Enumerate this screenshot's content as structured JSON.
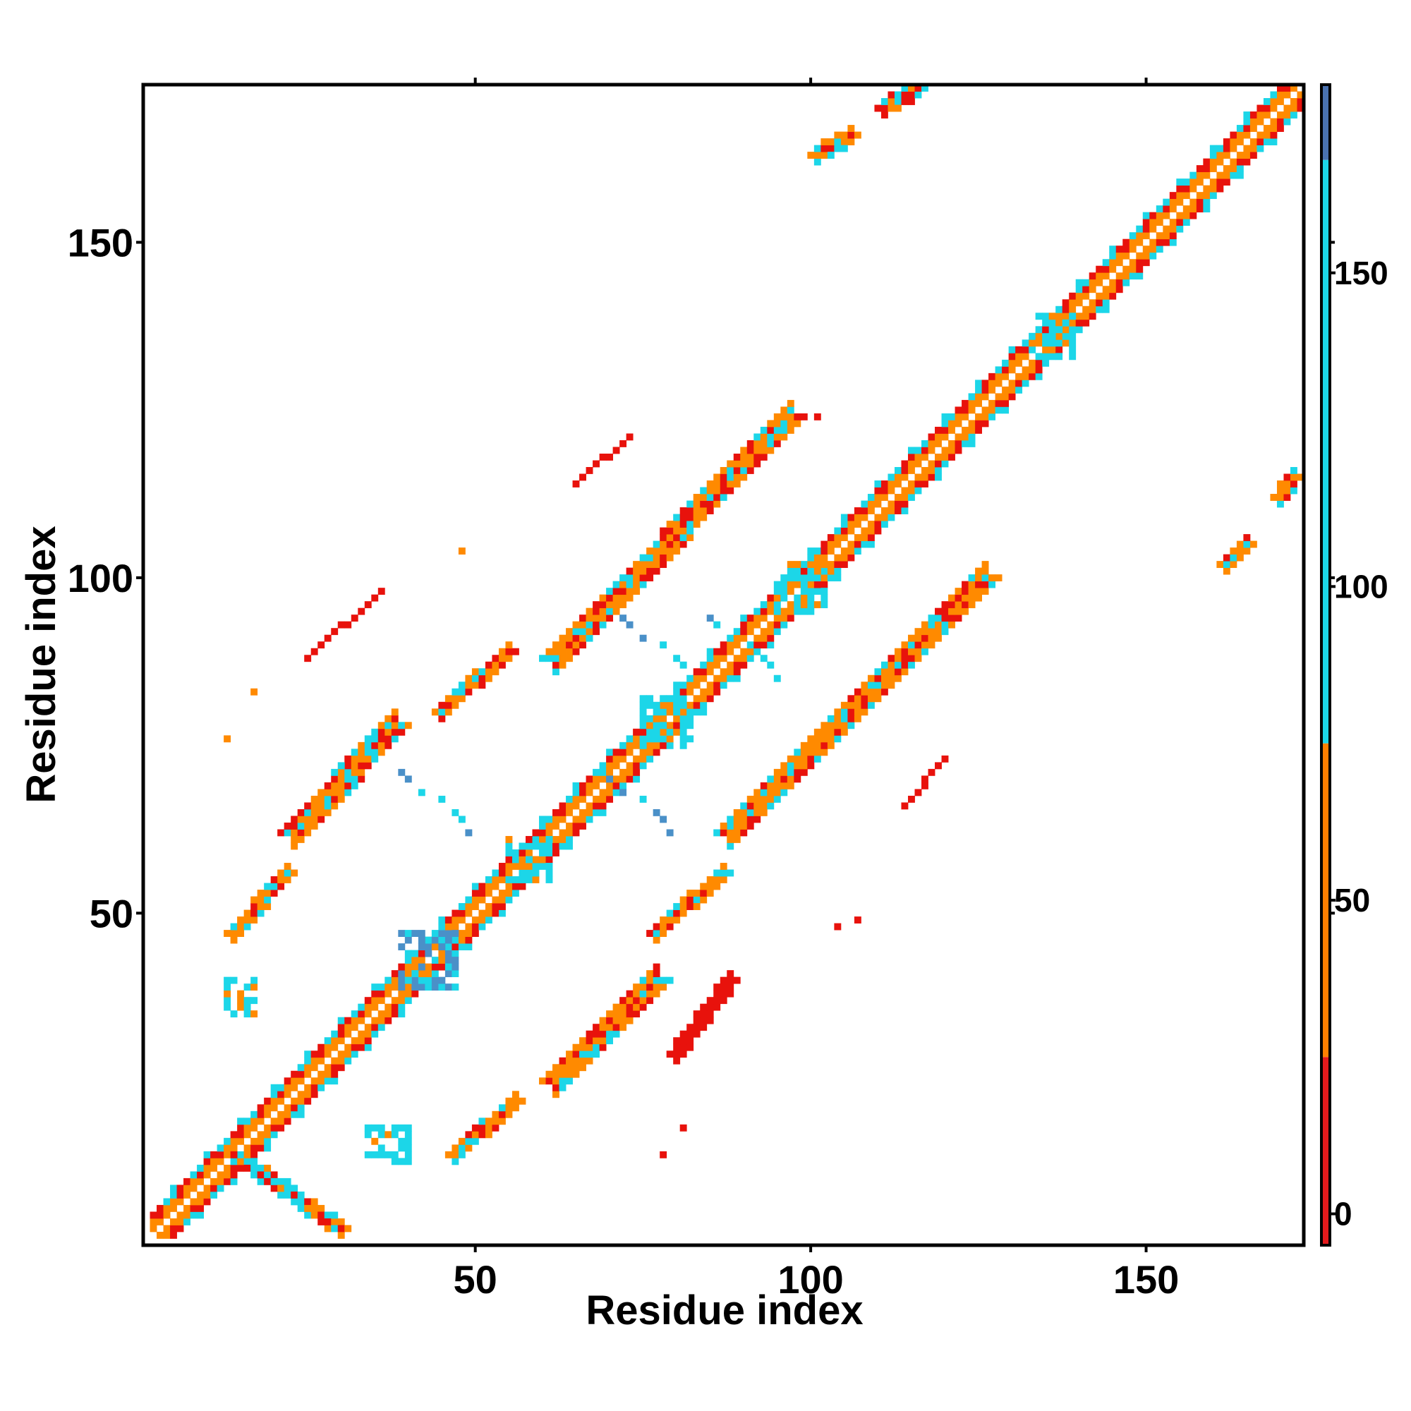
{
  "chart_data": {
    "type": "heatmap",
    "title": "",
    "xlabel": "Residue index",
    "ylabel": "Residue index",
    "xlim": [
      1,
      173
    ],
    "ylim": [
      1,
      173
    ],
    "x_ticks": [
      50,
      100,
      150
    ],
    "y_ticks": [
      50,
      100,
      150
    ],
    "grid": false,
    "colorbar": {
      "placement": "right",
      "range": [
        -5,
        180
      ],
      "ticks": [
        0,
        50,
        100,
        150
      ],
      "bands": [
        {
          "from": -5,
          "to": 25,
          "color": "#e41a1c"
        },
        {
          "from": 25,
          "to": 75,
          "color": "#ff7f00"
        },
        {
          "from": 75,
          "to": 168,
          "color": "#1cd6e8"
        },
        {
          "from": 168,
          "to": 180,
          "color": "#4a72b0"
        }
      ]
    },
    "colors": {
      "low": "#e8120c",
      "mid": "#ff8a00",
      "high": "#1cd6e8",
      "top": "#4a90c8"
    },
    "features": [
      {
        "kind": "diagonal",
        "start": 2,
        "end": 172
      },
      {
        "kind": "strand",
        "x": [
          14,
          30
        ],
        "y": [
          14,
          3
        ],
        "width": 3,
        "mix": "cyan-red"
      },
      {
        "kind": "strand",
        "x": [
          47,
          56
        ],
        "y": [
          14,
          22
        ],
        "width": 3,
        "mix": "red"
      },
      {
        "kind": "strand",
        "x": [
          62,
          77
        ],
        "y": [
          25,
          40
        ],
        "width": 4,
        "mix": "red"
      },
      {
        "kind": "strand",
        "x": [
          80,
          88
        ],
        "y": [
          29,
          40
        ],
        "width": 2,
        "mix": "thin-red"
      },
      {
        "kind": "strand",
        "x": [
          14,
          22
        ],
        "y": [
          47,
          56
        ],
        "width": 3,
        "mix": "red"
      },
      {
        "kind": "strand",
        "x": [
          23,
          38
        ],
        "y": [
          62,
          78
        ],
        "width": 4,
        "mix": "red"
      },
      {
        "kind": "strand",
        "x": [
          45,
          55
        ],
        "y": [
          80,
          89
        ],
        "width": 3,
        "mix": "red"
      },
      {
        "kind": "strand",
        "x": [
          62,
          97
        ],
        "y": [
          88,
          124
        ],
        "width": 4,
        "mix": "red"
      },
      {
        "kind": "strand",
        "x": [
          77,
          87
        ],
        "y": [
          47,
          56
        ],
        "width": 3,
        "mix": "red"
      },
      {
        "kind": "strand",
        "x": [
          88,
          126
        ],
        "y": [
          62,
          100
        ],
        "width": 4,
        "mix": "red"
      },
      {
        "kind": "strand",
        "x": [
          25,
          36
        ],
        "y": [
          88,
          98
        ],
        "width": 1,
        "mix": "thin-red"
      },
      {
        "kind": "strand",
        "x": [
          65,
          73
        ],
        "y": [
          114,
          121
        ],
        "width": 1,
        "mix": "thin-red"
      },
      {
        "kind": "strand",
        "x": [
          114,
          120
        ],
        "y": [
          66,
          73
        ],
        "width": 1,
        "mix": "thin-red"
      },
      {
        "kind": "strand",
        "x": [
          101,
          106
        ],
        "y": [
          163,
          166
        ],
        "width": 2,
        "mix": "red"
      },
      {
        "kind": "strand",
        "x": [
          111,
          116
        ],
        "y": [
          170,
          173
        ],
        "width": 2,
        "mix": "red"
      },
      {
        "kind": "strand",
        "x": [
          162,
          165
        ],
        "y": [
          102,
          105
        ],
        "width": 2,
        "mix": "red"
      },
      {
        "kind": "strand",
        "x": [
          170,
          172
        ],
        "y": [
          112,
          115
        ],
        "width": 2,
        "mix": "red"
      },
      {
        "kind": "blob",
        "x": [
          13,
          17
        ],
        "y": [
          35,
          40
        ],
        "mix": "cyan"
      },
      {
        "kind": "blob",
        "x": [
          34,
          40
        ],
        "y": [
          13,
          18
        ],
        "mix": "cyan"
      },
      {
        "kind": "blob",
        "x": [
          39,
          47
        ],
        "y": [
          39,
          47
        ],
        "mix": "blue"
      },
      {
        "kind": "blob",
        "x": [
          55,
          61
        ],
        "y": [
          55,
          61
        ],
        "mix": "cyan"
      },
      {
        "kind": "blob",
        "x": [
          75,
          82
        ],
        "y": [
          75,
          82
        ],
        "mix": "cyan"
      },
      {
        "kind": "blob",
        "x": [
          95,
          102
        ],
        "y": [
          95,
          102
        ],
        "mix": "cyan"
      },
      {
        "kind": "blob",
        "x": [
          133,
          139
        ],
        "y": [
          133,
          139
        ],
        "mix": "cyan"
      },
      {
        "kind": "arc",
        "cx": 45,
        "cy": 75,
        "from": 62,
        "to": 72,
        "mix": "blue"
      },
      {
        "kind": "arc",
        "cx": 75,
        "cy": 45,
        "from": 62,
        "to": 72,
        "mix": "blue"
      },
      {
        "kind": "arc",
        "cx": 78,
        "cy": 91,
        "from": 85,
        "to": 95,
        "mix": "blue"
      },
      {
        "kind": "arc",
        "cx": 91,
        "cy": 78,
        "from": 85,
        "to": 95,
        "mix": "blue"
      },
      {
        "kind": "dots",
        "points": [
          [
            13,
            76
          ],
          [
            17,
            83
          ],
          [
            48,
            104
          ],
          [
            81,
            18
          ],
          [
            78,
            14
          ],
          [
            104,
            48
          ],
          [
            107,
            49
          ],
          [
            101,
            124
          ]
        ],
        "mix": "red"
      }
    ]
  }
}
